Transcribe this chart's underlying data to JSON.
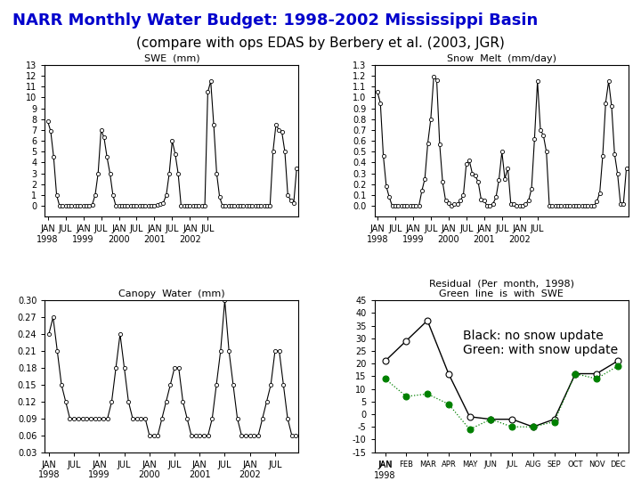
{
  "title": "NARR Monthly Water Budget: 1998-2002 Mississippi Basin",
  "subtitle": "(compare with ops EDAS by Berbery et al. (2003, JGR)",
  "title_color": "#0000CC",
  "subtitle_color": "#000000",
  "bg_color": "#ffffff",
  "swe_title": "SWE  (mm)",
  "swe_ylim": [
    -1,
    13
  ],
  "swe_yticks": [
    0,
    1,
    2,
    3,
    4,
    5,
    6,
    7,
    8,
    9,
    10,
    11,
    12,
    13
  ],
  "swe_data": [
    7.8,
    6.9,
    4.5,
    1.0,
    0.0,
    0.0,
    0.0,
    0.0,
    0.0,
    0.0,
    0.0,
    0.0,
    0.0,
    0.0,
    0.0,
    0.1,
    1.0,
    3.0,
    7.0,
    6.3,
    4.5,
    3.0,
    1.0,
    0.0,
    0.0,
    0.0,
    0.0,
    0.0,
    0.0,
    0.0,
    0.0,
    0.0,
    0.0,
    0.0,
    0.0,
    0.0,
    0.0,
    0.1,
    0.2,
    0.3,
    1.0,
    3.0,
    6.0,
    4.8,
    3.0,
    0.0,
    0.0,
    0.0,
    0.0,
    0.0,
    0.0,
    0.0,
    0.0,
    0.0,
    10.5,
    11.5,
    7.5,
    3.0,
    0.8,
    0.0,
    0.0,
    0.0,
    0.0,
    0.0,
    0.0,
    0.0,
    0.0,
    0.0,
    0.0,
    0.0,
    0.0,
    0.0,
    0.0,
    0.0,
    0.0,
    0.0,
    5.0,
    7.5,
    7.0,
    6.8,
    5.0,
    1.0,
    0.5,
    0.3,
    3.5
  ],
  "melt_title": "Snow  Melt  (mm/day)",
  "melt_ylim": [
    -0.1,
    1.3
  ],
  "melt_yticks": [
    0.0,
    0.1,
    0.2,
    0.3,
    0.4,
    0.5,
    0.6,
    0.7,
    0.8,
    0.9,
    1.0,
    1.1,
    1.2,
    1.3
  ],
  "melt_data": [
    1.05,
    0.95,
    0.46,
    0.18,
    0.08,
    0.0,
    0.0,
    0.0,
    0.0,
    0.0,
    0.0,
    0.0,
    0.0,
    0.0,
    0.0,
    0.14,
    0.25,
    0.58,
    0.8,
    1.19,
    1.16,
    0.57,
    0.22,
    0.05,
    0.03,
    0.0,
    0.02,
    0.02,
    0.05,
    0.1,
    0.39,
    0.42,
    0.3,
    0.28,
    0.22,
    0.06,
    0.05,
    0.0,
    0.0,
    0.02,
    0.08,
    0.24,
    0.5,
    0.25,
    0.35,
    0.02,
    0.02,
    0.0,
    0.0,
    0.0,
    0.02,
    0.05,
    0.16,
    0.62,
    1.15,
    0.7,
    0.65,
    0.5,
    0.0,
    0.0,
    0.0,
    0.0,
    0.0,
    0.0,
    0.0,
    0.0,
    0.0,
    0.0,
    0.0,
    0.0,
    0.0,
    0.0,
    0.0,
    0.0,
    0.04,
    0.12,
    0.46,
    0.95,
    1.15,
    0.92,
    0.48,
    0.3,
    0.02,
    0.02,
    0.35
  ],
  "canopy_title": "Canopy  Water  (mm)",
  "canopy_ylim": [
    0.03,
    0.3
  ],
  "canopy_yticks": [
    0.03,
    0.06,
    0.09,
    0.12,
    0.15,
    0.18,
    0.21,
    0.24,
    0.27,
    0.3
  ],
  "canopy_data": [
    0.24,
    0.27,
    0.21,
    0.15,
    0.12,
    0.09,
    0.09,
    0.09,
    0.09,
    0.09,
    0.09,
    0.09,
    0.09,
    0.09,
    0.09,
    0.12,
    0.18,
    0.24,
    0.18,
    0.12,
    0.09,
    0.09,
    0.09,
    0.09,
    0.06,
    0.06,
    0.06,
    0.09,
    0.12,
    0.15,
    0.18,
    0.18,
    0.12,
    0.09,
    0.06,
    0.06,
    0.06,
    0.06,
    0.06,
    0.09,
    0.15,
    0.21,
    0.3,
    0.21,
    0.15,
    0.09,
    0.06,
    0.06,
    0.06,
    0.06,
    0.06,
    0.09,
    0.12,
    0.15,
    0.21,
    0.21,
    0.15,
    0.09,
    0.06,
    0.06
  ],
  "residual_title": "Residual  (Per  month,  1998)",
  "residual_subtitle": "Green  line  is  with  SWE",
  "residual_annotation": "Black: no snow update\nGreen: with snow update",
  "residual_ylim": [
    -15,
    45
  ],
  "residual_yticks": [
    -15,
    -10,
    -5,
    0,
    5,
    10,
    15,
    20,
    25,
    30,
    35,
    40,
    45
  ],
  "residual_months": [
    "JAN",
    "FEB",
    "MAR",
    "APR",
    "MAY",
    "JUN",
    "JUL",
    "AUG",
    "SEP",
    "OCT",
    "NOV",
    "DEC"
  ],
  "residual_black": [
    21,
    29,
    37,
    16,
    -1,
    -2,
    -2,
    -5,
    -2,
    16,
    16,
    21
  ],
  "residual_green": [
    14,
    7,
    8,
    4,
    -6,
    -2,
    -5,
    -5,
    -3,
    16,
    14,
    19
  ],
  "line_color": "#000000",
  "marker_style": "o",
  "marker_size": 3,
  "marker_facecolor": "white",
  "marker_edgecolor": "#000000",
  "tick_fontsize": 7,
  "subplot_title_fontsize": 8
}
